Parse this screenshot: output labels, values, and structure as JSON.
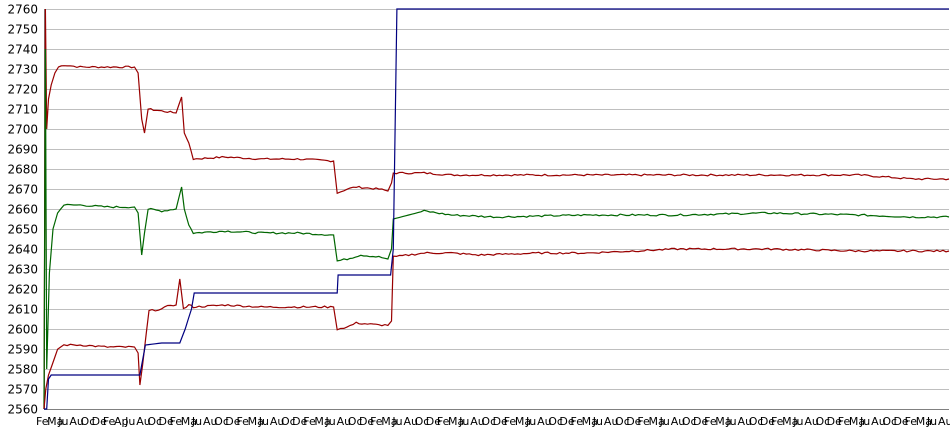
{
  "chart_data": {
    "type": "line",
    "title": "",
    "xlabel": "",
    "ylabel": "",
    "ylim": [
      2560,
      2760
    ],
    "y_ticks": [
      2560,
      2570,
      2580,
      2590,
      2600,
      2610,
      2620,
      2630,
      2640,
      2650,
      2660,
      2670,
      2680,
      2690,
      2700,
      2710,
      2720,
      2730,
      2740,
      2750,
      2760
    ],
    "x_ticks": [
      "Fe",
      "Ma",
      "Ju",
      "Au",
      "Oc",
      "De",
      "Fe",
      "Ap",
      "Ju",
      "Au",
      "Oc",
      "De",
      "Fe",
      "Ma",
      "Ju",
      "Au",
      "Oc",
      "De",
      "Fe",
      "Ma",
      "Ju",
      "Au",
      "Oc",
      "De",
      "Fe",
      "Ma",
      "Ju",
      "Au",
      "Oc",
      "De",
      "Fe",
      "Ma",
      "Ju",
      "Au",
      "Oc",
      "De",
      "Fe",
      "Ma",
      "Ju",
      "Au",
      "Oc",
      "De",
      "Fe",
      "Ma",
      "Ju",
      "Au",
      "Oc",
      "De",
      "Fe",
      "Ma",
      "Ju",
      "Au",
      "Oc",
      "De",
      "Fe",
      "Ma",
      "Ju",
      "Au",
      "Oc",
      "De",
      "Fe",
      "Ma",
      "Ju",
      "Au",
      "Oc",
      "De",
      "Fe",
      "Ma",
      "Ju",
      "Au",
      "Oc",
      "De",
      "Fe",
      "Ma",
      "Ju",
      "Au",
      "Oc",
      "De",
      "Fe",
      "Ma",
      "Ju",
      "Au"
    ],
    "x_range": [
      0,
      100
    ],
    "grid": true,
    "legend": "none",
    "series": [
      {
        "color": "#990000",
        "points": [
          [
            0,
            2560
          ],
          [
            0.15,
            2760
          ],
          [
            0.3,
            2700
          ],
          [
            0.5,
            2715
          ],
          [
            0.8,
            2722
          ],
          [
            1.2,
            2728
          ],
          [
            1.6,
            2731
          ],
          [
            2.2,
            2732
          ],
          [
            4,
            2731
          ],
          [
            7,
            2731
          ],
          [
            10,
            2731
          ],
          [
            10.4,
            2728
          ],
          [
            10.8,
            2705
          ],
          [
            11.1,
            2698
          ],
          [
            11.5,
            2710
          ],
          [
            13,
            2709
          ],
          [
            14.6,
            2708
          ],
          [
            15.2,
            2716
          ],
          [
            15.5,
            2698
          ],
          [
            16,
            2693
          ],
          [
            16.5,
            2685
          ],
          [
            20,
            2686
          ],
          [
            24,
            2685
          ],
          [
            28,
            2685
          ],
          [
            32,
            2684
          ],
          [
            32.4,
            2668
          ],
          [
            33.5,
            2670
          ],
          [
            34.5,
            2671
          ],
          [
            37,
            2670
          ],
          [
            38,
            2669
          ],
          [
            38.4,
            2673
          ],
          [
            38.6,
            2678
          ],
          [
            42,
            2678
          ],
          [
            45,
            2677
          ],
          [
            50,
            2677
          ],
          [
            60,
            2677
          ],
          [
            70,
            2677
          ],
          [
            80,
            2677
          ],
          [
            90,
            2677
          ],
          [
            93,
            2676
          ],
          [
            96,
            2675
          ],
          [
            100,
            2675
          ]
        ]
      },
      {
        "color": "#006600",
        "points": [
          [
            0,
            2560
          ],
          [
            0.15,
            2740
          ],
          [
            0.3,
            2580
          ],
          [
            0.6,
            2628
          ],
          [
            1,
            2650
          ],
          [
            1.5,
            2658
          ],
          [
            2.2,
            2662
          ],
          [
            4,
            2662
          ],
          [
            7,
            2661
          ],
          [
            10,
            2661
          ],
          [
            10.4,
            2658
          ],
          [
            10.8,
            2637
          ],
          [
            11.1,
            2648
          ],
          [
            11.5,
            2660
          ],
          [
            13,
            2659
          ],
          [
            14.6,
            2660
          ],
          [
            15.2,
            2671
          ],
          [
            15.5,
            2660
          ],
          [
            16,
            2652
          ],
          [
            16.5,
            2648
          ],
          [
            20,
            2649
          ],
          [
            24,
            2648
          ],
          [
            28,
            2648
          ],
          [
            32,
            2647
          ],
          [
            32.4,
            2634
          ],
          [
            33.5,
            2635
          ],
          [
            35,
            2637
          ],
          [
            37,
            2636
          ],
          [
            38,
            2635
          ],
          [
            38.4,
            2640
          ],
          [
            38.6,
            2655
          ],
          [
            42,
            2659
          ],
          [
            45,
            2657
          ],
          [
            50,
            2656
          ],
          [
            60,
            2657
          ],
          [
            70,
            2657
          ],
          [
            80,
            2658
          ],
          [
            90,
            2657
          ],
          [
            96,
            2656
          ],
          [
            100,
            2656
          ]
        ]
      },
      {
        "color": "#990000",
        "points": [
          [
            0,
            2560
          ],
          [
            0.2,
            2570
          ],
          [
            0.5,
            2577
          ],
          [
            0.9,
            2582
          ],
          [
            1.5,
            2590
          ],
          [
            2.2,
            2592
          ],
          [
            4,
            2592
          ],
          [
            7,
            2591
          ],
          [
            10,
            2591
          ],
          [
            10.4,
            2588
          ],
          [
            10.6,
            2572
          ],
          [
            10.9,
            2582
          ],
          [
            11.3,
            2598
          ],
          [
            11.6,
            2609
          ],
          [
            13,
            2610
          ],
          [
            14,
            2612
          ],
          [
            14.6,
            2612
          ],
          [
            15,
            2625
          ],
          [
            15.4,
            2610
          ],
          [
            16,
            2612
          ],
          [
            16.5,
            2611
          ],
          [
            20,
            2612
          ],
          [
            24,
            2611
          ],
          [
            28,
            2611
          ],
          [
            32,
            2611
          ],
          [
            32.4,
            2600
          ],
          [
            33.5,
            2601
          ],
          [
            34.5,
            2603
          ],
          [
            37,
            2602
          ],
          [
            38,
            2602
          ],
          [
            38.4,
            2604
          ],
          [
            38.6,
            2636
          ],
          [
            42,
            2638
          ],
          [
            45,
            2638
          ],
          [
            48,
            2637
          ],
          [
            55,
            2638
          ],
          [
            60,
            2638
          ],
          [
            70,
            2640
          ],
          [
            80,
            2640
          ],
          [
            90,
            2639
          ],
          [
            96,
            2639
          ],
          [
            100,
            2639
          ]
        ]
      },
      {
        "color": "#000080",
        "points": [
          [
            0,
            2560
          ],
          [
            0.3,
            2560
          ],
          [
            0.5,
            2575
          ],
          [
            0.8,
            2577
          ],
          [
            5,
            2577
          ],
          [
            10.6,
            2577
          ],
          [
            10.8,
            2582
          ],
          [
            11.2,
            2592
          ],
          [
            13,
            2593
          ],
          [
            15,
            2593
          ],
          [
            15.6,
            2600
          ],
          [
            16.3,
            2610
          ],
          [
            16.6,
            2618
          ],
          [
            20,
            2618
          ],
          [
            25,
            2618
          ],
          [
            32.4,
            2618
          ],
          [
            32.5,
            2627
          ],
          [
            36,
            2627
          ],
          [
            38.3,
            2627
          ],
          [
            38.6,
            2640
          ],
          [
            38.8,
            2700
          ],
          [
            39,
            2760
          ],
          [
            45,
            2760
          ],
          [
            60,
            2760
          ],
          [
            80,
            2760
          ],
          [
            100,
            2760
          ]
        ]
      }
    ]
  }
}
